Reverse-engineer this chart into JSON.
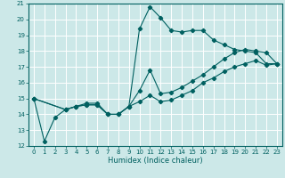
{
  "title": "",
  "xlabel": "Humidex (Indice chaleur)",
  "ylabel": "",
  "xlim": [
    -0.5,
    23.5
  ],
  "ylim": [
    12,
    21
  ],
  "yticks": [
    12,
    13,
    14,
    15,
    16,
    17,
    18,
    19,
    20,
    21
  ],
  "xticks": [
    0,
    1,
    2,
    3,
    4,
    5,
    6,
    7,
    8,
    9,
    10,
    11,
    12,
    13,
    14,
    15,
    16,
    17,
    18,
    19,
    20,
    21,
    22,
    23
  ],
  "bg_color": "#cce8e8",
  "line_color": "#006060",
  "grid_color": "#ffffff",
  "line1_x": [
    0,
    1,
    2,
    3,
    4,
    5,
    6,
    7,
    8,
    9,
    10,
    11,
    12,
    13,
    14,
    15,
    16,
    17,
    18,
    19,
    20,
    21,
    22,
    23
  ],
  "line1_y": [
    15.0,
    12.3,
    13.8,
    14.3,
    14.5,
    14.7,
    14.7,
    14.0,
    14.0,
    14.5,
    19.4,
    20.8,
    20.1,
    19.3,
    19.2,
    19.3,
    19.3,
    18.7,
    18.4,
    18.1,
    18.0,
    17.9,
    17.2,
    17.2
  ],
  "line2_x": [
    0,
    3,
    4,
    5,
    6,
    7,
    8,
    9,
    10,
    11,
    12,
    13,
    14,
    15,
    16,
    17,
    18,
    19,
    20,
    21,
    22,
    23
  ],
  "line2_y": [
    15.0,
    14.3,
    14.5,
    14.6,
    14.6,
    14.0,
    14.0,
    14.5,
    15.5,
    16.8,
    15.3,
    15.4,
    15.7,
    16.1,
    16.5,
    17.0,
    17.5,
    17.9,
    18.1,
    18.0,
    17.9,
    17.2
  ],
  "line3_x": [
    0,
    3,
    4,
    5,
    6,
    7,
    8,
    9,
    10,
    11,
    12,
    13,
    14,
    15,
    16,
    17,
    18,
    19,
    20,
    21,
    22,
    23
  ],
  "line3_y": [
    15.0,
    14.3,
    14.5,
    14.6,
    14.6,
    14.0,
    14.0,
    14.5,
    14.8,
    15.2,
    14.8,
    14.9,
    15.2,
    15.5,
    16.0,
    16.3,
    16.7,
    17.0,
    17.2,
    17.4,
    17.1,
    17.2
  ]
}
